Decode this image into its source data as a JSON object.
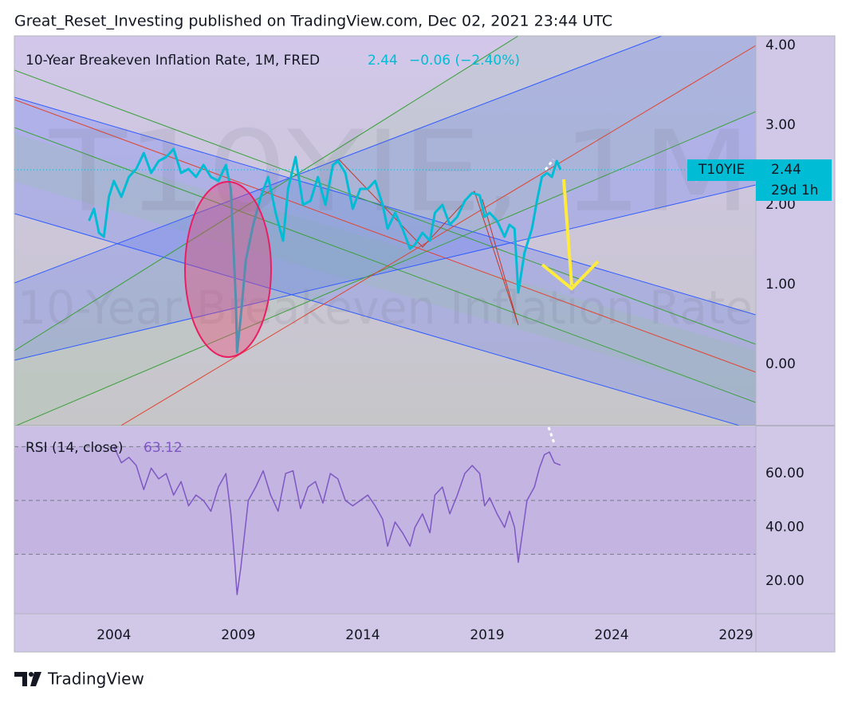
{
  "header": "Great_Reset_Investing published on TradingView.com, Dec 02, 2021 23:44 UTC",
  "footer": "TradingView",
  "chart_data": [
    {
      "type": "line",
      "title": "10-Year Breakeven Inflation Rate, 1M, FRED",
      "change_label": "−0.06 (−2.40%)",
      "symbol": "T10YIE",
      "countdown": "29d 1h",
      "watermark": "T10YIE, 1M",
      "watermark_subtitle": "10-Year Breakeven Inflation Rate",
      "color": "#00bcd4",
      "x": [
        2003.0,
        2003.2,
        2003.4,
        2003.6,
        2003.8,
        2004.0,
        2004.3,
        2004.6,
        2004.9,
        2005.2,
        2005.5,
        2005.8,
        2006.1,
        2006.4,
        2006.7,
        2007.0,
        2007.3,
        2007.6,
        2007.9,
        2008.2,
        2008.5,
        2008.7,
        2008.8,
        2008.9,
        2008.95,
        2009.1,
        2009.3,
        2009.6,
        2009.9,
        2010.2,
        2010.5,
        2010.8,
        2011.0,
        2011.3,
        2011.6,
        2011.9,
        2012.2,
        2012.5,
        2012.8,
        2013.0,
        2013.3,
        2013.6,
        2013.9,
        2014.2,
        2014.5,
        2014.8,
        2015.0,
        2015.3,
        2015.6,
        2015.9,
        2016.1,
        2016.4,
        2016.7,
        2016.9,
        2017.2,
        2017.5,
        2017.8,
        2018.1,
        2018.4,
        2018.7,
        2018.9,
        2019.1,
        2019.4,
        2019.7,
        2019.9,
        2020.1,
        2020.25,
        2020.5,
        2020.8,
        2021.0,
        2021.2,
        2021.4,
        2021.6,
        2021.8,
        2021.95
      ],
      "values": [
        1.8,
        1.95,
        1.65,
        1.6,
        2.1,
        2.3,
        2.1,
        2.35,
        2.45,
        2.65,
        2.4,
        2.55,
        2.6,
        2.7,
        2.4,
        2.45,
        2.35,
        2.5,
        2.35,
        2.3,
        2.5,
        2.2,
        1.5,
        0.8,
        0.15,
        0.6,
        1.3,
        1.75,
        2.1,
        2.35,
        1.9,
        1.55,
        2.2,
        2.6,
        2.0,
        2.05,
        2.35,
        2.0,
        2.5,
        2.55,
        2.4,
        1.95,
        2.2,
        2.2,
        2.3,
        2.0,
        1.7,
        1.9,
        1.7,
        1.45,
        1.5,
        1.65,
        1.55,
        1.9,
        2.0,
        1.75,
        1.85,
        2.05,
        2.15,
        2.12,
        1.85,
        1.9,
        1.8,
        1.6,
        1.75,
        1.7,
        0.9,
        1.4,
        1.7,
        2.05,
        2.35,
        2.4,
        2.35,
        2.55,
        2.44
      ],
      "xlim": [
        2000.0,
        2029.8
      ],
      "ylim": [
        -0.77,
        4.12
      ],
      "yticks": [
        {
          "value": 0,
          "label": "0.00"
        },
        {
          "value": 1,
          "label": "1.00"
        },
        {
          "value": 2,
          "label": "2.00"
        },
        {
          "value": 3,
          "label": "3.00"
        },
        {
          "value": 4,
          "label": "4.00"
        }
      ],
      "grid": false
    },
    {
      "type": "line",
      "title": "RSI (14, close)",
      "color": "#7e57c2",
      "x": [
        2004.0,
        2004.3,
        2004.6,
        2004.9,
        2005.2,
        2005.5,
        2005.8,
        2006.1,
        2006.4,
        2006.7,
        2007.0,
        2007.3,
        2007.6,
        2007.9,
        2008.2,
        2008.5,
        2008.7,
        2008.85,
        2008.95,
        2009.1,
        2009.4,
        2009.7,
        2010.0,
        2010.3,
        2010.6,
        2010.9,
        2011.2,
        2011.5,
        2011.8,
        2012.1,
        2012.4,
        2012.7,
        2013.0,
        2013.3,
        2013.6,
        2013.9,
        2014.2,
        2014.5,
        2014.8,
        2015.0,
        2015.3,
        2015.6,
        2015.9,
        2016.1,
        2016.4,
        2016.7,
        2016.9,
        2017.2,
        2017.5,
        2017.8,
        2018.1,
        2018.4,
        2018.7,
        2018.9,
        2019.1,
        2019.4,
        2019.7,
        2019.9,
        2020.1,
        2020.25,
        2020.6,
        2020.9,
        2021.1,
        2021.3,
        2021.5,
        2021.7,
        2021.95
      ],
      "values": [
        70,
        64,
        66,
        63,
        54,
        62,
        58,
        60,
        52,
        57,
        48,
        52,
        50,
        46,
        55,
        60,
        45,
        28,
        15,
        25,
        50,
        55,
        61,
        52,
        46,
        60,
        61,
        47,
        55,
        57,
        49,
        60,
        58,
        50,
        48,
        50,
        52,
        48,
        43,
        33,
        42,
        38,
        33,
        40,
        45,
        38,
        52,
        55,
        45,
        52,
        60,
        63,
        60,
        48,
        51,
        45,
        40,
        46,
        40,
        27,
        50,
        55,
        62,
        67,
        68,
        64,
        63.12
      ],
      "levels": [
        70,
        50,
        30
      ],
      "xlim": [
        2000.0,
        2029.8
      ],
      "ylim": [
        7.9,
        77.5
      ],
      "yticks": [
        {
          "value": 20,
          "label": "20.00"
        },
        {
          "value": 40,
          "label": "40.00"
        },
        {
          "value": 60,
          "label": "60.00"
        }
      ],
      "xticks": [
        2004,
        2009,
        2014,
        2019,
        2024,
        2029
      ],
      "grid": false
    }
  ]
}
